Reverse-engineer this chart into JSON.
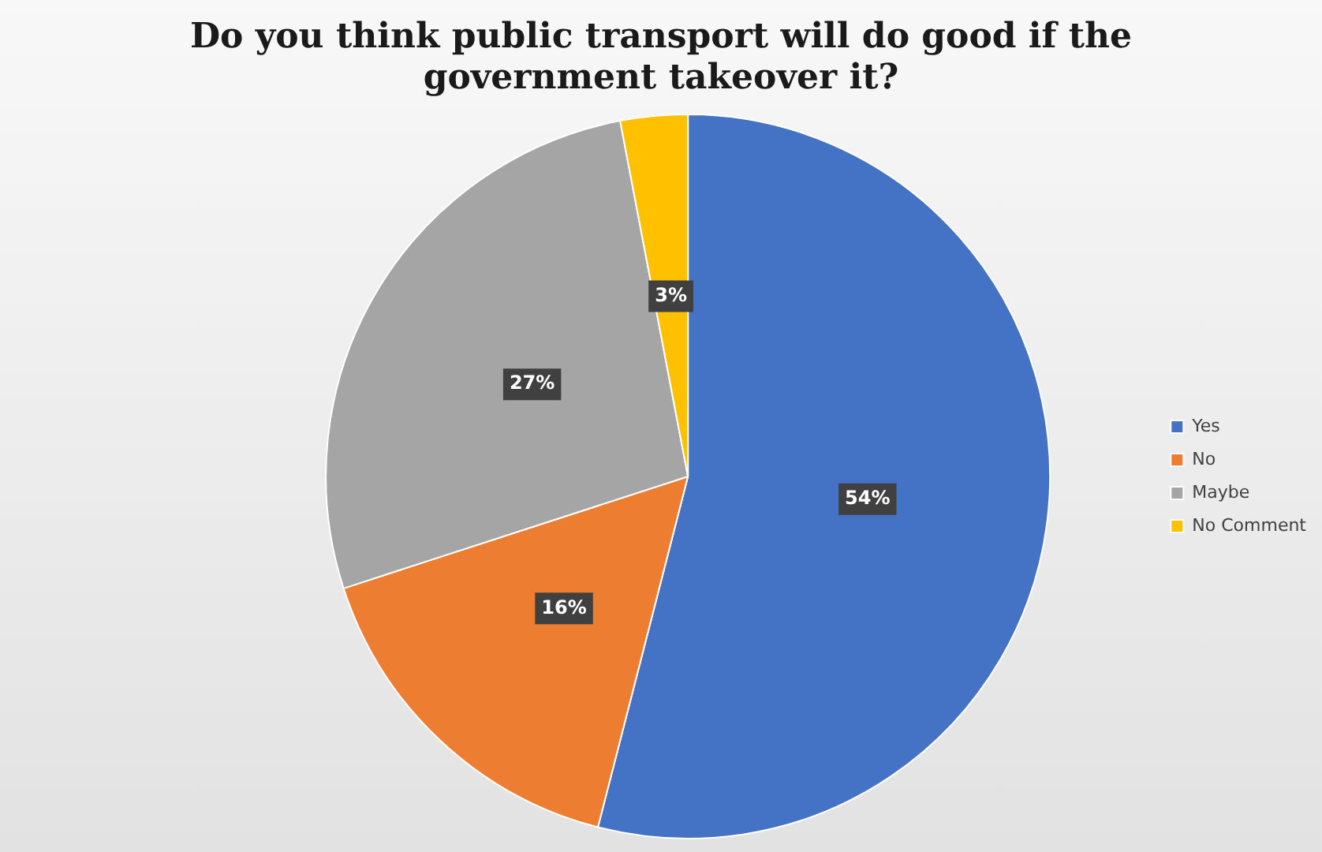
{
  "chart_data": {
    "type": "pie",
    "title": "Do you think public transport will do good if the government takeover it?",
    "categories": [
      "Yes",
      "No",
      "Maybe",
      "No Comment"
    ],
    "values": [
      54,
      16,
      27,
      3
    ],
    "colors": [
      "#4472c4",
      "#ed7d31",
      "#a5a5a5",
      "#ffc000"
    ],
    "value_labels": [
      "54%",
      "16%",
      "27%",
      "3%"
    ],
    "legend": "right"
  }
}
